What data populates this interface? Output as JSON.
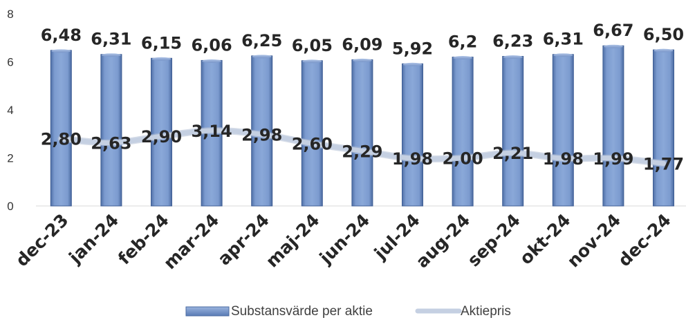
{
  "chart_data": {
    "type": "bar",
    "categories": [
      "dec-23",
      "jan-24",
      "feb-24",
      "mar-24",
      "apr-24",
      "maj-24",
      "jun-24",
      "jul-24",
      "aug-24",
      "sep-24",
      "okt-24",
      "nov-24",
      "dec-24"
    ],
    "series": [
      {
        "name": "Substansvärde per aktie",
        "type": "bar",
        "values": [
          6.48,
          6.31,
          6.15,
          6.06,
          6.25,
          6.05,
          6.09,
          5.92,
          6.2,
          6.23,
          6.31,
          6.67,
          6.5
        ],
        "labels": [
          "6,48",
          "6,31",
          "6,15",
          "6,06",
          "6,25",
          "6,05",
          "6,09",
          "5,92",
          "6,2",
          "6,23",
          "6,31",
          "6,67",
          "6,50"
        ],
        "color": "#6f8fc4"
      },
      {
        "name": "Aktiepris",
        "type": "line",
        "values": [
          2.8,
          2.63,
          2.9,
          3.14,
          2.98,
          2.6,
          2.29,
          1.98,
          2.0,
          2.21,
          1.98,
          1.99,
          1.77
        ],
        "labels": [
          "2,80",
          "2,63",
          "2,90",
          "3,14",
          "2,98",
          "2,60",
          "2,29",
          "1,98",
          "2,00",
          "2,21",
          "1,98",
          "1,99",
          "1,77"
        ],
        "color": "#c5d0e2"
      }
    ],
    "yticks": [
      "0",
      "2",
      "4",
      "6",
      "8"
    ],
    "ylim": [
      0,
      8
    ],
    "grid": false,
    "legend_position": "bottom"
  }
}
